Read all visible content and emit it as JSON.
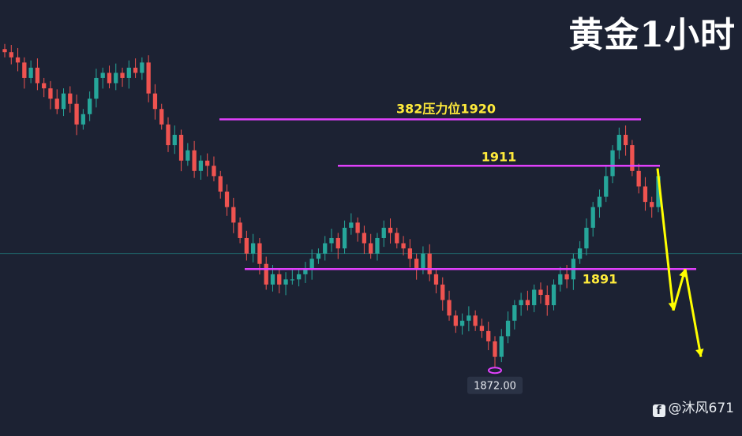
{
  "page": {
    "title": "黄金1小时",
    "watermark": "@沐风671",
    "watermark_logo": "f"
  },
  "colors": {
    "background": "#1c2233",
    "up": "#26a69a",
    "down": "#ef5350",
    "level_line": "#e040fb",
    "level_label": "#ffeb3b",
    "arrow": "#ffff00",
    "price_line": "#1f5f66"
  },
  "chart_data": {
    "type": "candlestick",
    "x": "hourly bars",
    "grid": false,
    "y_range": [
      1866,
      1937
    ],
    "levels": [
      {
        "price": 1920,
        "label": "382压力位1920"
      },
      {
        "price": 1911,
        "label": "1911"
      },
      {
        "price": 1891,
        "label": "1891"
      }
    ],
    "low_marker": {
      "price": 1872.0,
      "label": "1872.00"
    },
    "current_price_line": 1894,
    "forecast_path": [
      1910.5,
      1894,
      1883,
      1891,
      1874
    ],
    "closes": [
      1933,
      1932,
      1931,
      1928,
      1930,
      1927,
      1926,
      1924,
      1922,
      1925,
      1923,
      1919,
      1921,
      1924,
      1928,
      1929,
      1927,
      1929,
      1928,
      1930,
      1929,
      1931,
      1925,
      1922,
      1919,
      1915,
      1917,
      1912,
      1914,
      1910,
      1912,
      1911,
      1909,
      1906,
      1903,
      1900,
      1897,
      1894,
      1896,
      1892,
      1888,
      1890,
      1888,
      1889,
      1889,
      1890,
      1891,
      1893,
      1894,
      1896,
      1897,
      1895,
      1899,
      1900,
      1898,
      1896,
      1894,
      1897,
      1899,
      1898,
      1896,
      1895,
      1893,
      1891,
      1894,
      1890,
      1888,
      1885,
      1882,
      1880,
      1881,
      1882,
      1880,
      1879,
      1877,
      1874,
      1878,
      1881,
      1884,
      1885,
      1884,
      1887,
      1886,
      1884,
      1888,
      1890,
      1889,
      1893,
      1895,
      1899,
      1903,
      1905,
      1909,
      1914,
      1917,
      1915,
      1910,
      1907,
      1904,
      1903,
      1909
    ]
  }
}
